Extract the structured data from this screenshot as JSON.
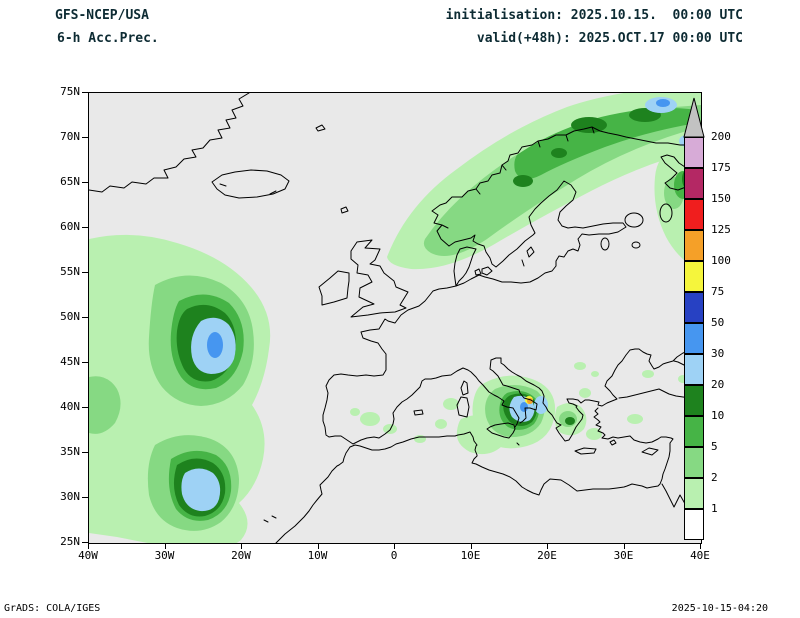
{
  "header": {
    "model": "GFS-NCEP/USA",
    "product": "6-h Acc.Prec.",
    "init_line": "initialisation: 2025.10.15.  00:00 UTC",
    "valid_line": "valid(+48h): 2025.OCT.17 00:00 UTC"
  },
  "footer": {
    "credit": "GrADS: COLA/IGES",
    "generated": "2025-10-15-04:20"
  },
  "axes": {
    "lat_labels": [
      "75N",
      "70N",
      "65N",
      "60N",
      "55N",
      "50N",
      "45N",
      "40N",
      "35N",
      "30N",
      "25N"
    ],
    "lon_labels": [
      "40W",
      "30W",
      "20W",
      "10W",
      "0",
      "10E",
      "20E",
      "30E",
      "40E"
    ]
  },
  "legend": {
    "arrow_color": "#c2c2c2",
    "levels": [
      {
        "label": "1",
        "color": "#ffffff"
      },
      {
        "label": "2",
        "color": "#b9f0b0"
      },
      {
        "label": "5",
        "color": "#86d983"
      },
      {
        "label": "10",
        "color": "#46b446"
      },
      {
        "label": "20",
        "color": "#1e821e"
      },
      {
        "label": "30",
        "color": "#9ed2f5"
      },
      {
        "label": "50",
        "color": "#4696f0"
      },
      {
        "label": "75",
        "color": "#2741c3"
      },
      {
        "label": "100",
        "color": "#f5f53c"
      },
      {
        "label": "125",
        "color": "#f5a028"
      },
      {
        "label": "150",
        "color": "#f01e1e"
      },
      {
        "label": "175",
        "color": "#b42864"
      },
      {
        "label": "200",
        "color": "#d7abd7"
      }
    ]
  },
  "map": {
    "background": "#e9e9e9",
    "coastline_color": "#000000"
  }
}
